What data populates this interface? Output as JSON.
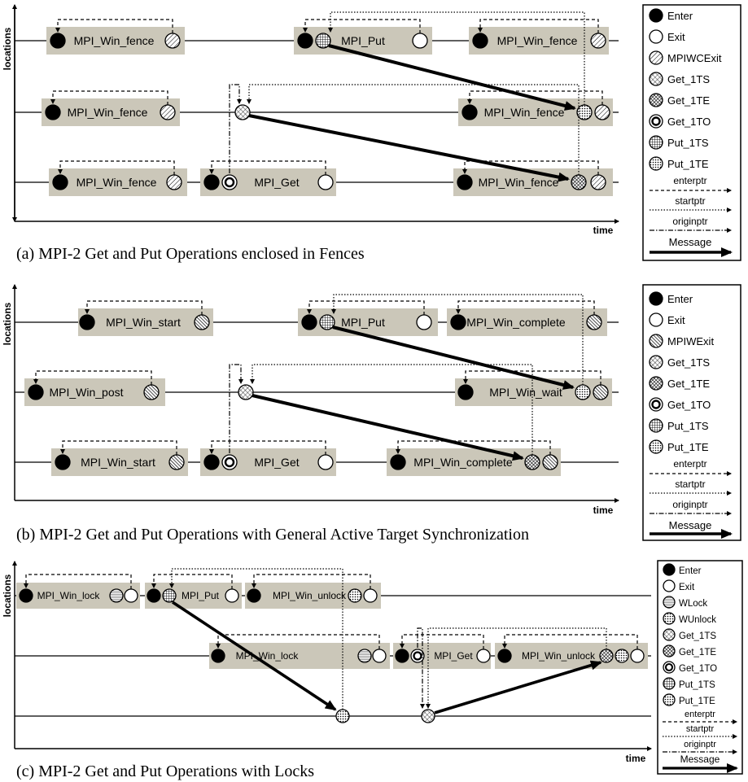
{
  "diagrams": [
    {
      "caption": "(a) MPI-2 Get and Put Operations enclosed in Fences",
      "y_axis_label": "locations",
      "x_axis_label": "time",
      "boxes": [
        {
          "label": "MPI_Win_fence"
        },
        {
          "label": "MPI_Put"
        },
        {
          "label": "MPI_Win_fence"
        },
        {
          "label": "MPI_Win_fence"
        },
        {
          "label": "MPI_Win_fence"
        },
        {
          "label": "MPI_Win_fence"
        },
        {
          "label": "MPI_Get"
        },
        {
          "label": "MPI_Win_fence"
        }
      ],
      "legend": [
        {
          "label": "Enter",
          "symbol": "enter"
        },
        {
          "label": "Exit",
          "symbol": "exit"
        },
        {
          "label": "MPIWCExit",
          "symbol": "wcexit"
        },
        {
          "label": "Get_1TS",
          "symbol": "get1ts"
        },
        {
          "label": "Get_1TE",
          "symbol": "get1te"
        },
        {
          "label": "Get_1TO",
          "symbol": "get1to"
        },
        {
          "label": "Put_1TS",
          "symbol": "put1ts"
        },
        {
          "label": "Put_1TE",
          "symbol": "put1te"
        },
        {
          "label": "enterptr",
          "symbol": "dashed"
        },
        {
          "label": "startptr",
          "symbol": "dotted"
        },
        {
          "label": "originptr",
          "symbol": "dashdot"
        },
        {
          "label": "Message",
          "symbol": "message"
        }
      ]
    },
    {
      "caption": "(b) MPI-2 Get and Put Operations with General Active Target Synchronization",
      "y_axis_label": "locations",
      "x_axis_label": "time",
      "boxes": [
        {
          "label": "MPI_Win_start"
        },
        {
          "label": "MPI_Put"
        },
        {
          "label": "MPI_Win_complete"
        },
        {
          "label": "MPI_Win_post"
        },
        {
          "label": "MPI_Win_wait"
        },
        {
          "label": "MPI_Win_start"
        },
        {
          "label": "MPI_Get"
        },
        {
          "label": "MPI_Win_complete"
        }
      ],
      "legend": [
        {
          "label": "Enter",
          "symbol": "enter"
        },
        {
          "label": "Exit",
          "symbol": "exit"
        },
        {
          "label": "MPIWExit",
          "symbol": "wexit"
        },
        {
          "label": "Get_1TS",
          "symbol": "get1ts"
        },
        {
          "label": "Get_1TE",
          "symbol": "get1te"
        },
        {
          "label": "Get_1TO",
          "symbol": "get1to"
        },
        {
          "label": "Put_1TS",
          "symbol": "put1ts"
        },
        {
          "label": "Put_1TE",
          "symbol": "put1te"
        },
        {
          "label": "enterptr",
          "symbol": "dashed"
        },
        {
          "label": "startptr",
          "symbol": "dotted"
        },
        {
          "label": "originptr",
          "symbol": "dashdot"
        },
        {
          "label": "Message",
          "symbol": "message"
        }
      ]
    },
    {
      "caption": "(c) MPI-2 Get and Put Operations with Locks",
      "y_axis_label": "locations",
      "x_axis_label": "time",
      "boxes": [
        {
          "label": "MPI_Win_lock"
        },
        {
          "label": "MPI_Put"
        },
        {
          "label": "MPI_Win_unlock"
        },
        {
          "label": "MPI_Win_lock"
        },
        {
          "label": "MPI_Get"
        },
        {
          "label": "MPI_Win_unlock"
        }
      ],
      "legend": [
        {
          "label": "Enter",
          "symbol": "enter"
        },
        {
          "label": "Exit",
          "symbol": "exit"
        },
        {
          "label": "WLock",
          "symbol": "wlock"
        },
        {
          "label": "WUnlock",
          "symbol": "wunlock"
        },
        {
          "label": "Get_1TS",
          "symbol": "get1ts"
        },
        {
          "label": "Get_1TE",
          "symbol": "get1te"
        },
        {
          "label": "Get_1TO",
          "symbol": "get1to"
        },
        {
          "label": "Put_1TS",
          "symbol": "put1ts"
        },
        {
          "label": "Put_1TE",
          "symbol": "put1te"
        },
        {
          "label": "enterptr",
          "symbol": "dashed"
        },
        {
          "label": "startptr",
          "symbol": "dotted"
        },
        {
          "label": "originptr",
          "symbol": "dashdot"
        },
        {
          "label": "Message",
          "symbol": "message"
        }
      ]
    }
  ]
}
